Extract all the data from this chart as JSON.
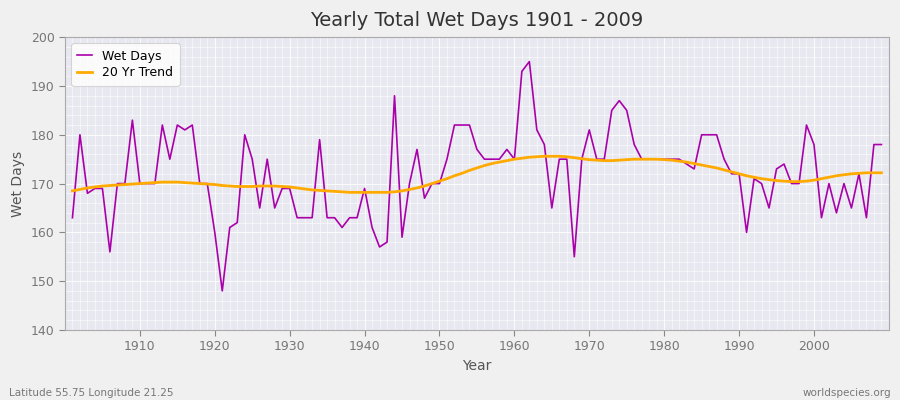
{
  "title": "Yearly Total Wet Days 1901 - 2009",
  "xlabel": "Year",
  "ylabel": "Wet Days",
  "xlim": [
    1900,
    2010
  ],
  "ylim": [
    140,
    200
  ],
  "yticks": [
    140,
    150,
    160,
    170,
    180,
    190,
    200
  ],
  "xticks": [
    1910,
    1920,
    1930,
    1940,
    1950,
    1960,
    1970,
    1980,
    1990,
    2000
  ],
  "line_color": "#aa00aa",
  "trend_color": "#ffaa00",
  "fig_bg_color": "#f0f0f0",
  "plot_bg_color": "#e8e8f0",
  "grid_color": "#ffffff",
  "footnote_left": "Latitude 55.75 Longitude 21.25",
  "footnote_right": "worldspecies.org",
  "wet_days": [
    163,
    180,
    168,
    169,
    169,
    156,
    170,
    170,
    183,
    170,
    170,
    170,
    182,
    175,
    182,
    181,
    182,
    170,
    170,
    160,
    148,
    161,
    162,
    180,
    175,
    165,
    175,
    165,
    169,
    169,
    163,
    163,
    163,
    179,
    163,
    163,
    161,
    163,
    163,
    169,
    161,
    157,
    158,
    188,
    159,
    170,
    177,
    167,
    170,
    170,
    175,
    182,
    182,
    182,
    177,
    175,
    175,
    175,
    177,
    175,
    193,
    195,
    181,
    178,
    165,
    175,
    175,
    155,
    175,
    181,
    175,
    175,
    185,
    187,
    185,
    178,
    175,
    175,
    175,
    175,
    175,
    175,
    174,
    173,
    180,
    180,
    180,
    175,
    172,
    172,
    160,
    171,
    170,
    165,
    173,
    174,
    170,
    170,
    182,
    178,
    163,
    170,
    164,
    170,
    165,
    172,
    163,
    178,
    178
  ],
  "years": [
    1901,
    1902,
    1903,
    1904,
    1905,
    1906,
    1907,
    1908,
    1909,
    1910,
    1911,
    1912,
    1913,
    1914,
    1915,
    1916,
    1917,
    1918,
    1919,
    1920,
    1921,
    1922,
    1923,
    1924,
    1925,
    1926,
    1927,
    1928,
    1929,
    1930,
    1931,
    1932,
    1933,
    1934,
    1935,
    1936,
    1937,
    1938,
    1939,
    1940,
    1941,
    1942,
    1943,
    1944,
    1945,
    1946,
    1947,
    1948,
    1949,
    1950,
    1951,
    1952,
    1953,
    1954,
    1955,
    1956,
    1957,
    1958,
    1959,
    1960,
    1961,
    1962,
    1963,
    1964,
    1965,
    1966,
    1967,
    1968,
    1969,
    1970,
    1971,
    1972,
    1973,
    1974,
    1975,
    1976,
    1977,
    1978,
    1979,
    1980,
    1981,
    1982,
    1983,
    1984,
    1985,
    1986,
    1987,
    1988,
    1989,
    1990,
    1991,
    1992,
    1993,
    1994,
    1995,
    1996,
    1997,
    1998,
    1999,
    2000,
    2001,
    2002,
    2003,
    2004,
    2005,
    2006,
    2007,
    2008,
    2009
  ],
  "trend": [
    168.5,
    168.8,
    169.1,
    169.3,
    169.5,
    169.6,
    169.7,
    169.8,
    169.9,
    170.0,
    170.1,
    170.2,
    170.3,
    170.3,
    170.3,
    170.2,
    170.1,
    170.0,
    169.9,
    169.8,
    169.6,
    169.5,
    169.4,
    169.4,
    169.4,
    169.5,
    169.5,
    169.5,
    169.4,
    169.3,
    169.1,
    168.9,
    168.7,
    168.6,
    168.5,
    168.4,
    168.3,
    168.2,
    168.2,
    168.2,
    168.2,
    168.2,
    168.2,
    168.3,
    168.5,
    168.8,
    169.1,
    169.5,
    170.0,
    170.5,
    171.0,
    171.6,
    172.1,
    172.7,
    173.2,
    173.7,
    174.1,
    174.4,
    174.7,
    175.0,
    175.2,
    175.4,
    175.5,
    175.6,
    175.6,
    175.6,
    175.5,
    175.3,
    175.1,
    174.9,
    174.8,
    174.7,
    174.7,
    174.8,
    174.9,
    175.0,
    175.0,
    175.0,
    175.0,
    174.9,
    174.8,
    174.6,
    174.4,
    174.1,
    173.8,
    173.5,
    173.2,
    172.8,
    172.4,
    172.0,
    171.6,
    171.3,
    171.0,
    170.8,
    170.6,
    170.5,
    170.4,
    170.4,
    170.5,
    170.7,
    171.0,
    171.3,
    171.6,
    171.8,
    172.0,
    172.1,
    172.2,
    172.2,
    172.2
  ]
}
